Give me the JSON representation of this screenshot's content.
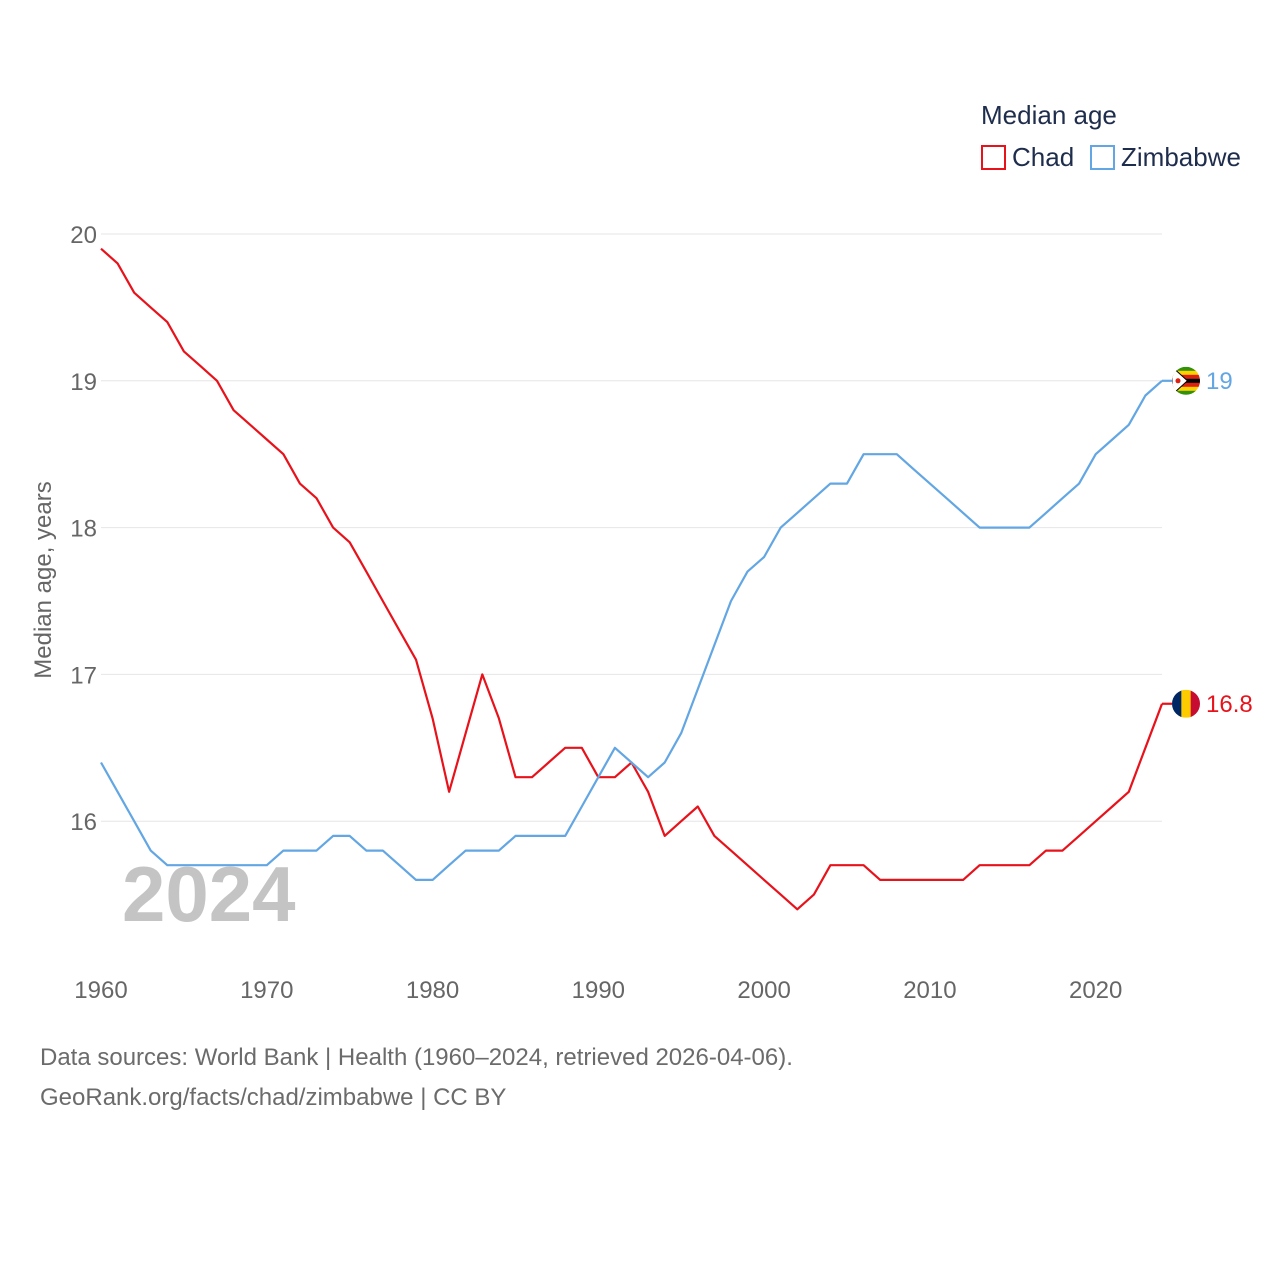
{
  "chart_data": {
    "type": "line",
    "title": "Median age",
    "xlabel": "",
    "ylabel": "Median age, years",
    "xlim": [
      1960,
      2024
    ],
    "ylim": [
      15.0,
      20.0
    ],
    "xticks": [
      1960,
      1970,
      1980,
      1990,
      2000,
      2010,
      2020
    ],
    "yticks": [
      16,
      17,
      18,
      19,
      20
    ],
    "grid": true,
    "legend_position": "top-right",
    "current_year": "2024",
    "x": [
      1960,
      1961,
      1962,
      1963,
      1964,
      1965,
      1966,
      1967,
      1968,
      1969,
      1970,
      1971,
      1972,
      1973,
      1974,
      1975,
      1976,
      1977,
      1978,
      1979,
      1980,
      1981,
      1982,
      1983,
      1984,
      1985,
      1986,
      1987,
      1988,
      1989,
      1990,
      1991,
      1992,
      1993,
      1994,
      1995,
      1996,
      1997,
      1998,
      1999,
      2000,
      2001,
      2002,
      2003,
      2004,
      2005,
      2006,
      2007,
      2008,
      2009,
      2010,
      2011,
      2012,
      2013,
      2014,
      2015,
      2016,
      2017,
      2018,
      2019,
      2020,
      2021,
      2022,
      2023,
      2024
    ],
    "series": [
      {
        "name": "Chad",
        "color": "#e8121b",
        "end_label": "16.8",
        "flag": "chad-flag",
        "values": [
          19.9,
          19.8,
          19.6,
          19.5,
          19.4,
          19.2,
          19.1,
          19.0,
          18.8,
          18.7,
          18.6,
          18.5,
          18.3,
          18.2,
          18.0,
          17.9,
          17.7,
          17.5,
          17.3,
          17.1,
          16.7,
          16.2,
          16.6,
          17.0,
          16.7,
          16.3,
          16.3,
          16.4,
          16.5,
          16.5,
          16.3,
          16.3,
          16.4,
          16.2,
          15.9,
          16.0,
          16.1,
          15.9,
          15.8,
          15.7,
          15.6,
          15.5,
          15.4,
          15.5,
          15.7,
          15.7,
          15.7,
          15.6,
          15.6,
          15.6,
          15.6,
          15.6,
          15.6,
          15.7,
          15.7,
          15.7,
          15.7,
          15.8,
          15.8,
          15.9,
          16.0,
          16.1,
          16.2,
          16.5,
          16.8
        ]
      },
      {
        "name": "Zimbabwe",
        "color": "#62a6e3",
        "end_label": "19",
        "flag": "zimbabwe-flag",
        "values": [
          16.4,
          16.2,
          16.0,
          15.8,
          15.7,
          15.7,
          15.7,
          15.7,
          15.7,
          15.7,
          15.7,
          15.8,
          15.8,
          15.8,
          15.9,
          15.9,
          15.8,
          15.8,
          15.7,
          15.6,
          15.6,
          15.7,
          15.8,
          15.8,
          15.8,
          15.9,
          15.9,
          15.9,
          15.9,
          16.1,
          16.3,
          16.5,
          16.4,
          16.3,
          16.4,
          16.6,
          16.9,
          17.2,
          17.5,
          17.7,
          17.8,
          18.0,
          18.1,
          18.2,
          18.3,
          18.3,
          18.5,
          18.5,
          18.5,
          18.4,
          18.3,
          18.2,
          18.1,
          18.0,
          18.0,
          18.0,
          18.0,
          18.1,
          18.2,
          18.3,
          18.5,
          18.6,
          18.7,
          18.9,
          19.0
        ]
      }
    ]
  },
  "source": {
    "line1": "Data sources: World Bank | Health (1960–2024, retrieved 2026-04-06).",
    "line2": "GeoRank.org/facts/chad/zimbabwe | CC BY"
  }
}
